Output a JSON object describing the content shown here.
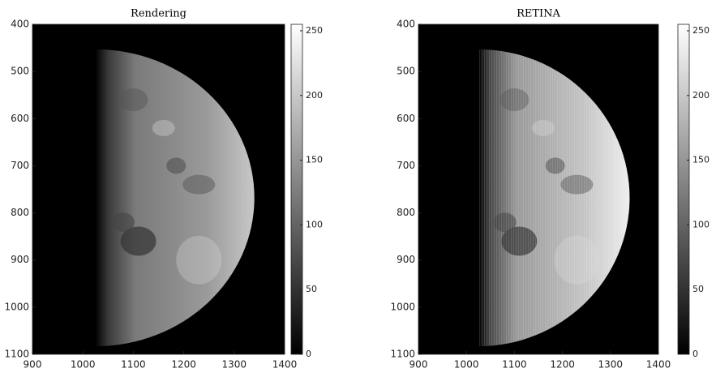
{
  "chart_data": [
    {
      "type": "image",
      "title": "Rendering",
      "colormap": "gray",
      "xlim": [
        900,
        1400
      ],
      "xticks": [
        900,
        1000,
        1100,
        1200,
        1300,
        1400
      ],
      "ylim": [
        400,
        1100
      ],
      "yticks": [
        400,
        500,
        600,
        700,
        800,
        900,
        1000,
        1100
      ],
      "y_reversed": true,
      "clim": [
        0,
        255
      ],
      "cticks": [
        0,
        50,
        100,
        150,
        200,
        250
      ]
    },
    {
      "type": "image",
      "title": "RETINA",
      "colormap": "gray",
      "xlim": [
        900,
        1400
      ],
      "xticks": [
        900,
        1000,
        1100,
        1200,
        1300,
        1400
      ],
      "ylim": [
        400,
        1100
      ],
      "yticks": [
        400,
        500,
        600,
        700,
        800,
        900,
        1000,
        1100
      ],
      "y_reversed": true,
      "clim": [
        0,
        255
      ],
      "cticks": [
        0,
        50,
        100,
        150,
        200,
        250
      ]
    }
  ]
}
